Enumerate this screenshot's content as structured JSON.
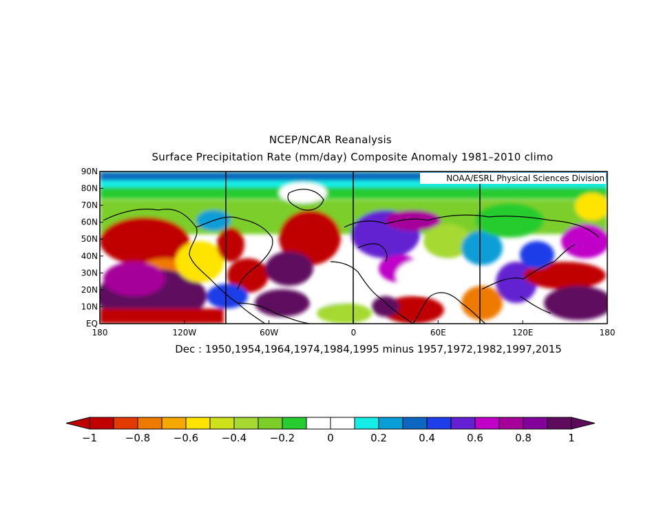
{
  "title_line1": "NCEP/NCAR Reanalysis",
  "title_line2": "Surface Precipitation Rate (mm/day) Composite Anomaly 1981–2010 climo",
  "credit": "NOAA/ESRL Physical Sciences Division",
  "subtitle": "Dec : 1950,1954,1964,1974,1984,1995 minus 1957,1972,1982,1997,2015",
  "lat_labels": [
    "90N",
    "80N",
    "70N",
    "60N",
    "50N",
    "40N",
    "30N",
    "20N",
    "10N",
    "EQ"
  ],
  "lon_labels": [
    "180",
    "120W",
    "60W",
    "0",
    "60E",
    "120E",
    "180"
  ],
  "colorbar": {
    "colors": [
      "#c00000",
      "#e23a00",
      "#ef7a00",
      "#f5a800",
      "#ffe400",
      "#cde21a",
      "#a6d932",
      "#7ccf29",
      "#27cc2e",
      "#ffffff",
      "#ffffff",
      "#14eee6",
      "#0a9ed8",
      "#0d66c0",
      "#1d3ee8",
      "#6420d2",
      "#c000c8",
      "#a6009a",
      "#83009a",
      "#5e0b5e"
    ],
    "under_color": "#c00000",
    "over_color": "#5e0b5e",
    "tick_labels": [
      "−1",
      "−0.8",
      "−0.6",
      "−0.4",
      "−0.2",
      "0",
      "0.2",
      "0.4",
      "0.6",
      "0.8",
      "1"
    ]
  }
}
